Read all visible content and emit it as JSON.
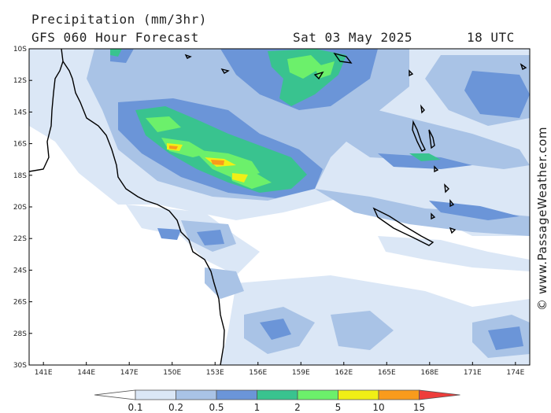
{
  "header": {
    "title": "Precipitation (mm/3hr)",
    "subtitle": "GFS 060 Hour Forecast",
    "date": "Sat 03 May 2025",
    "time": "18 UTC"
  },
  "credit": "© www.PassageWeather.com",
  "map": {
    "lat_range": [
      -30,
      -10
    ],
    "lon_range": [
      140,
      175
    ],
    "lat_labels": [
      "10S",
      "12S",
      "14S",
      "16S",
      "18S",
      "20S",
      "22S",
      "24S",
      "26S",
      "28S",
      "30S"
    ],
    "lon_labels": [
      "141E",
      "144E",
      "147E",
      "150E",
      "153E",
      "156E",
      "159E",
      "162E",
      "165E",
      "168E",
      "171E",
      "174E"
    ]
  },
  "legend": {
    "thresholds": [
      "0.1",
      "0.2",
      "0.5",
      "1",
      "2",
      "5",
      "10",
      "15"
    ],
    "colors": [
      "#ffffff",
      "#dbe7f6",
      "#a9c3e6",
      "#6b95d8",
      "#39c38f",
      "#6cf06b",
      "#f0ef16",
      "#f99b1c",
      "#ee3d3b"
    ]
  }
}
